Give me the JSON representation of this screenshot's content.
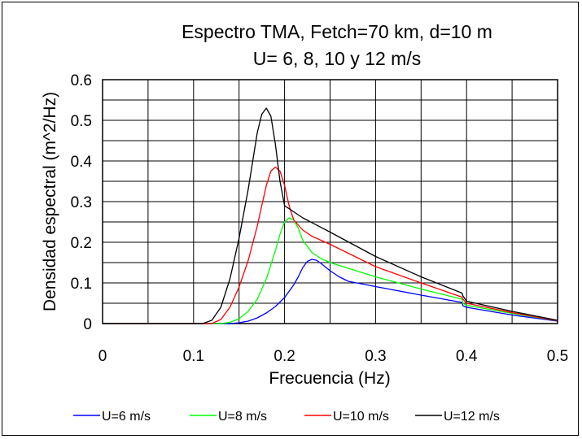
{
  "chart_data": {
    "type": "line",
    "title": "Espectro TMA, Fetch=70 km, d=10 m",
    "subtitle": "U= 6, 8, 10 y 12 m/s",
    "xlabel": "Frecuencia (Hz)",
    "ylabel": "Densidad espectral (m^2/Hz)",
    "xlim": [
      0,
      0.5
    ],
    "ylim": [
      0,
      0.6
    ],
    "xticks": [
      "0",
      "0.1",
      "0.2",
      "0.3",
      "0.4",
      "0.5"
    ],
    "yticks": [
      "0",
      "0.1",
      "0.2",
      "0.3",
      "0.4",
      "0.5",
      "0.6"
    ],
    "grid": true,
    "legend": "bottom",
    "series": [
      {
        "name": "U=6 m/s",
        "color": "#0000ff",
        "x": [
          0,
          0.14,
          0.15,
          0.16,
          0.17,
          0.18,
          0.19,
          0.2,
          0.21,
          0.215,
          0.22,
          0.225,
          0.23,
          0.235,
          0.24,
          0.25,
          0.26,
          0.27,
          0.3,
          0.35,
          0.395,
          0.396,
          0.4,
          0.45,
          0.5
        ],
        "y": [
          0,
          0,
          0.002,
          0.006,
          0.014,
          0.026,
          0.042,
          0.064,
          0.095,
          0.115,
          0.138,
          0.153,
          0.158,
          0.156,
          0.148,
          0.13,
          0.115,
          0.104,
          0.091,
          0.07,
          0.052,
          0.044,
          0.04,
          0.021,
          0.006
        ]
      },
      {
        "name": "U=8 m/s",
        "color": "#00ff00",
        "x": [
          0,
          0.13,
          0.14,
          0.15,
          0.16,
          0.17,
          0.18,
          0.19,
          0.195,
          0.2,
          0.205,
          0.21,
          0.215,
          0.22,
          0.23,
          0.24,
          0.25,
          0.3,
          0.35,
          0.395,
          0.396,
          0.4,
          0.45,
          0.5
        ],
        "y": [
          0,
          0,
          0.003,
          0.012,
          0.03,
          0.06,
          0.11,
          0.18,
          0.22,
          0.25,
          0.26,
          0.255,
          0.235,
          0.205,
          0.175,
          0.16,
          0.15,
          0.115,
          0.085,
          0.06,
          0.05,
          0.045,
          0.025,
          0.007
        ]
      },
      {
        "name": "U=10 m/s",
        "color": "#ff0000",
        "x": [
          0,
          0.12,
          0.13,
          0.14,
          0.15,
          0.16,
          0.17,
          0.175,
          0.18,
          0.185,
          0.19,
          0.195,
          0.2,
          0.205,
          0.21,
          0.22,
          0.23,
          0.25,
          0.3,
          0.35,
          0.395,
          0.396,
          0.4,
          0.45,
          0.5
        ],
        "y": [
          0,
          0,
          0.01,
          0.04,
          0.09,
          0.155,
          0.24,
          0.29,
          0.34,
          0.375,
          0.385,
          0.375,
          0.34,
          0.29,
          0.255,
          0.23,
          0.215,
          0.195,
          0.14,
          0.1,
          0.065,
          0.06,
          0.05,
          0.027,
          0.007
        ]
      },
      {
        "name": "U=12 m/s",
        "color": "#000000",
        "x": [
          0,
          0.11,
          0.12,
          0.13,
          0.14,
          0.15,
          0.16,
          0.165,
          0.17,
          0.175,
          0.18,
          0.185,
          0.19,
          0.195,
          0.2,
          0.21,
          0.22,
          0.25,
          0.3,
          0.35,
          0.395,
          0.396,
          0.4,
          0.45,
          0.5
        ],
        "y": [
          0,
          0,
          0.008,
          0.04,
          0.11,
          0.21,
          0.33,
          0.4,
          0.47,
          0.515,
          0.53,
          0.51,
          0.44,
          0.35,
          0.29,
          0.275,
          0.26,
          0.225,
          0.165,
          0.115,
          0.075,
          0.068,
          0.055,
          0.03,
          0.008
        ]
      }
    ]
  }
}
